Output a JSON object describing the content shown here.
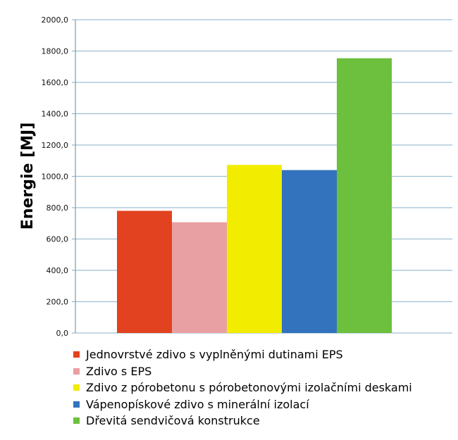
{
  "chart_data": {
    "type": "bar",
    "ylabel": "Energie [MJ]",
    "xlabel": "",
    "ylim": [
      0,
      2000
    ],
    "yticks": [
      "0,0",
      "200,0",
      "400,0",
      "600,0",
      "800,0",
      "1000,0",
      "1200,0",
      "1400,0",
      "1600,0",
      "1800,0",
      "2000,0"
    ],
    "grid": true,
    "legend_position": "bottom",
    "series": [
      {
        "name": "Jednovrstvé zdivo s vyplněnými dutinami EPS",
        "value": 780,
        "color": "#e2421f"
      },
      {
        "name": "Zdivo s EPS",
        "value": 707,
        "color": "#e9a0a3"
      },
      {
        "name": "Zdivo z pórobetonu s pórobetonovými izolačními deskami",
        "value": 1073,
        "color": "#f2ec00"
      },
      {
        "name": "Vápenopískové zdivo s minerální izolací",
        "value": 1040,
        "color": "#3373bd"
      },
      {
        "name": "Dřevitá sendvičová konstrukce",
        "value": 1754,
        "color": "#6dbf3e"
      }
    ]
  }
}
